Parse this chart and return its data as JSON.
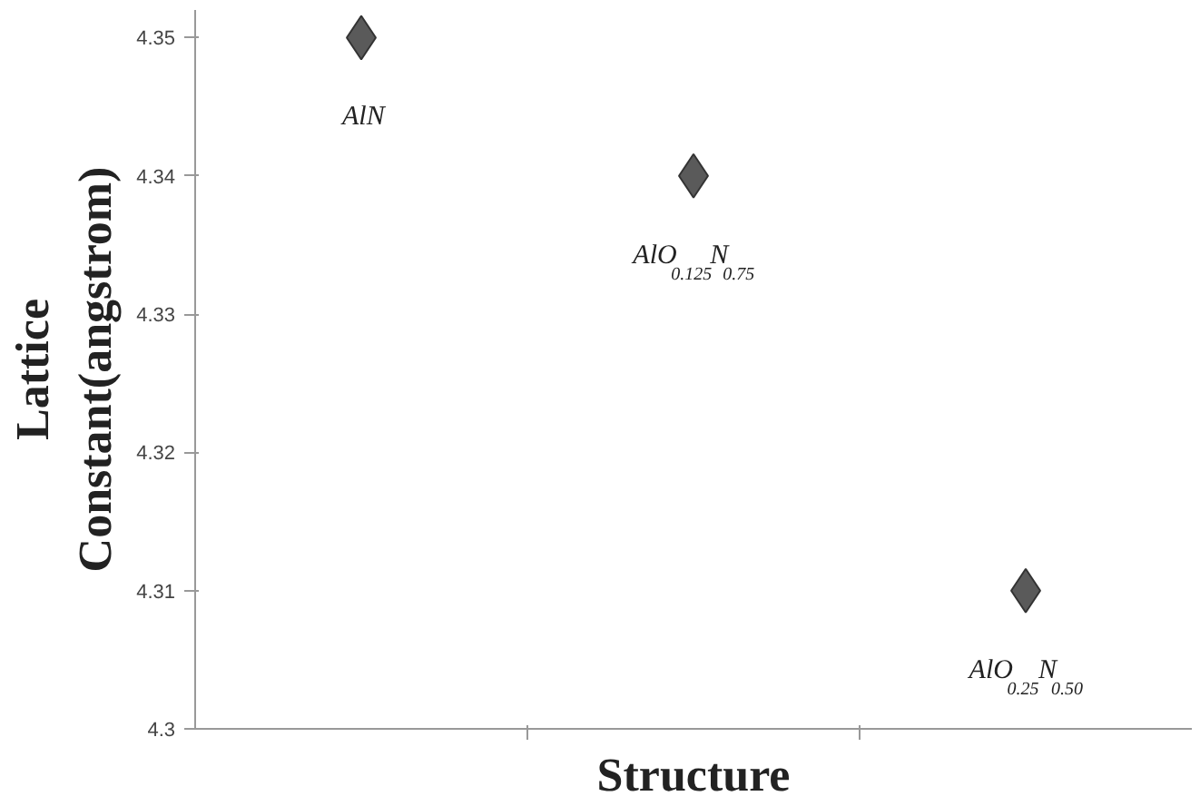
{
  "chart_data": {
    "type": "scatter",
    "xlabel": "Structure",
    "ylabel": "Lattice\nConstant(angstrom)",
    "categories": [
      null,
      null,
      null
    ],
    "values": [
      4.35,
      4.34,
      4.31
    ],
    "color": "#5a5a5a",
    "marker": "diamond",
    "ylim": [
      4.3,
      4.352
    ],
    "yticks": [
      4.3,
      4.31,
      4.32,
      4.33,
      4.34,
      4.35
    ],
    "tick_labels": "y",
    "annotations": [
      {
        "text": "AlN",
        "y": 4.35
      },
      {
        "text": "AlO$_{0.125}$N$_{0.75}$",
        "y": 4.34
      },
      {
        "text": "AlO$_{0.25}$N$_{0.50}$",
        "y": 4.31
      }
    ]
  }
}
